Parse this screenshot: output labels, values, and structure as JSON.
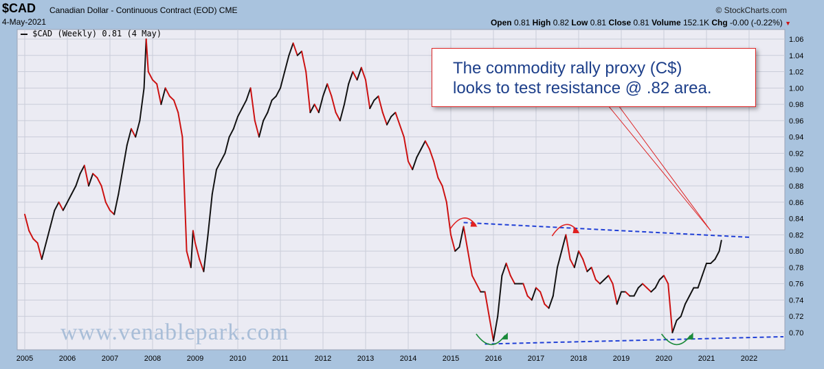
{
  "header": {
    "symbol": "$CAD",
    "subtitle": "Canadian Dollar - Continuous Contract (EOD)",
    "exchange": "CME",
    "date": "4-May-2021",
    "brand": "© StockCharts.com",
    "open_label": "Open",
    "open_value": "0.81",
    "high_label": "High",
    "high_value": "0.82",
    "low_label": "Low",
    "low_value": "0.81",
    "close_label": "Close",
    "close_value": "0.81",
    "volume_label": "Volume",
    "volume_value": "152.1K",
    "chg_label": "Chg",
    "chg_value": "-0.00 (-0.22%)"
  },
  "legend": {
    "label": "$CAD (Weekly) 0.81 (4 May)"
  },
  "callout": {
    "line1": "The commodity rally proxy (C$)",
    "line2": "looks to test resistance @ .82 area."
  },
  "watermark": "www.venablepark.com",
  "colors": {
    "up": "#111111",
    "down": "#cc1111",
    "resistance": "#1f3fd6",
    "support": "#1f3fd6",
    "top_arrow": "#e02020",
    "bottom_arrow": "#1a8a3a",
    "callout_border": "#dd2222",
    "callout_text": "#1d3f8a"
  },
  "chart_data": {
    "type": "line",
    "title": "$CAD",
    "ylim": [
      0.68,
      1.07
    ],
    "xlim": [
      2005.0,
      2022.6
    ],
    "yticks": [
      0.7,
      0.72,
      0.74,
      0.76,
      0.78,
      0.8,
      0.82,
      0.84,
      0.86,
      0.88,
      0.9,
      0.92,
      0.94,
      0.96,
      0.98,
      1.0,
      1.02,
      1.04,
      1.06
    ],
    "ytick_labels": [
      "0.70",
      "0.72",
      "0.74",
      "0.76",
      "0.78",
      "0.80",
      "0.82",
      "0.84",
      "0.86",
      "0.88",
      "0.90",
      "0.92",
      "0.94",
      "0.96",
      "0.98",
      "1.00",
      "1.02",
      "1.04",
      "1.06"
    ],
    "xticks": [
      2005,
      2006,
      2007,
      2008,
      2009,
      2010,
      2011,
      2012,
      2013,
      2014,
      2015,
      2016,
      2017,
      2018,
      2019,
      2020,
      2021,
      2022
    ],
    "xtick_labels": [
      "2005",
      "2006",
      "2007",
      "2008",
      "2009",
      "2010",
      "2011",
      "2012",
      "2013",
      "2014",
      "2015",
      "2016",
      "2017",
      "2018",
      "2019",
      "2020",
      "2021",
      "2022"
    ],
    "grid": true,
    "series": [
      {
        "name": "$CAD (Weekly)",
        "points": [
          [
            2005.0,
            0.845
          ],
          [
            2005.1,
            0.825
          ],
          [
            2005.2,
            0.815
          ],
          [
            2005.3,
            0.81
          ],
          [
            2005.4,
            0.79
          ],
          [
            2005.5,
            0.81
          ],
          [
            2005.6,
            0.83
          ],
          [
            2005.7,
            0.85
          ],
          [
            2005.8,
            0.86
          ],
          [
            2005.9,
            0.85
          ],
          [
            2006.0,
            0.86
          ],
          [
            2006.1,
            0.87
          ],
          [
            2006.2,
            0.88
          ],
          [
            2006.3,
            0.895
          ],
          [
            2006.4,
            0.905
          ],
          [
            2006.5,
            0.88
          ],
          [
            2006.6,
            0.895
          ],
          [
            2006.7,
            0.89
          ],
          [
            2006.8,
            0.88
          ],
          [
            2006.9,
            0.86
          ],
          [
            2007.0,
            0.85
          ],
          [
            2007.1,
            0.845
          ],
          [
            2007.2,
            0.87
          ],
          [
            2007.3,
            0.9
          ],
          [
            2007.4,
            0.93
          ],
          [
            2007.5,
            0.95
          ],
          [
            2007.6,
            0.94
          ],
          [
            2007.7,
            0.96
          ],
          [
            2007.8,
            1.0
          ],
          [
            2007.85,
            1.06
          ],
          [
            2007.9,
            1.02
          ],
          [
            2008.0,
            1.01
          ],
          [
            2008.1,
            1.005
          ],
          [
            2008.2,
            0.98
          ],
          [
            2008.3,
            1.0
          ],
          [
            2008.4,
            0.99
          ],
          [
            2008.5,
            0.985
          ],
          [
            2008.6,
            0.97
          ],
          [
            2008.7,
            0.94
          ],
          [
            2008.75,
            0.87
          ],
          [
            2008.8,
            0.8
          ],
          [
            2008.9,
            0.78
          ],
          [
            2008.95,
            0.825
          ],
          [
            2009.0,
            0.81
          ],
          [
            2009.1,
            0.79
          ],
          [
            2009.2,
            0.775
          ],
          [
            2009.3,
            0.82
          ],
          [
            2009.4,
            0.87
          ],
          [
            2009.5,
            0.9
          ],
          [
            2009.6,
            0.91
          ],
          [
            2009.7,
            0.92
          ],
          [
            2009.8,
            0.94
          ],
          [
            2009.9,
            0.95
          ],
          [
            2010.0,
            0.965
          ],
          [
            2010.1,
            0.975
          ],
          [
            2010.2,
            0.985
          ],
          [
            2010.3,
            1.0
          ],
          [
            2010.4,
            0.96
          ],
          [
            2010.5,
            0.94
          ],
          [
            2010.6,
            0.96
          ],
          [
            2010.7,
            0.97
          ],
          [
            2010.8,
            0.985
          ],
          [
            2010.9,
            0.99
          ],
          [
            2011.0,
            1.0
          ],
          [
            2011.1,
            1.02
          ],
          [
            2011.2,
            1.04
          ],
          [
            2011.3,
            1.055
          ],
          [
            2011.4,
            1.04
          ],
          [
            2011.5,
            1.045
          ],
          [
            2011.6,
            1.02
          ],
          [
            2011.7,
            0.97
          ],
          [
            2011.8,
            0.98
          ],
          [
            2011.9,
            0.97
          ],
          [
            2012.0,
            0.99
          ],
          [
            2012.1,
            1.005
          ],
          [
            2012.2,
            0.99
          ],
          [
            2012.3,
            0.97
          ],
          [
            2012.4,
            0.96
          ],
          [
            2012.5,
            0.98
          ],
          [
            2012.6,
            1.005
          ],
          [
            2012.7,
            1.02
          ],
          [
            2012.8,
            1.01
          ],
          [
            2012.9,
            1.025
          ],
          [
            2013.0,
            1.01
          ],
          [
            2013.1,
            0.975
          ],
          [
            2013.2,
            0.985
          ],
          [
            2013.3,
            0.99
          ],
          [
            2013.4,
            0.97
          ],
          [
            2013.5,
            0.955
          ],
          [
            2013.6,
            0.965
          ],
          [
            2013.7,
            0.97
          ],
          [
            2013.8,
            0.955
          ],
          [
            2013.9,
            0.94
          ],
          [
            2014.0,
            0.91
          ],
          [
            2014.1,
            0.9
          ],
          [
            2014.2,
            0.915
          ],
          [
            2014.3,
            0.925
          ],
          [
            2014.4,
            0.935
          ],
          [
            2014.5,
            0.925
          ],
          [
            2014.6,
            0.91
          ],
          [
            2014.7,
            0.89
          ],
          [
            2014.8,
            0.88
          ],
          [
            2014.9,
            0.86
          ],
          [
            2015.0,
            0.82
          ],
          [
            2015.1,
            0.8
          ],
          [
            2015.2,
            0.805
          ],
          [
            2015.3,
            0.83
          ],
          [
            2015.4,
            0.8
          ],
          [
            2015.5,
            0.77
          ],
          [
            2015.6,
            0.76
          ],
          [
            2015.7,
            0.75
          ],
          [
            2015.8,
            0.75
          ],
          [
            2015.9,
            0.72
          ],
          [
            2016.0,
            0.69
          ],
          [
            2016.1,
            0.72
          ],
          [
            2016.2,
            0.77
          ],
          [
            2016.3,
            0.785
          ],
          [
            2016.4,
            0.77
          ],
          [
            2016.5,
            0.76
          ],
          [
            2016.6,
            0.76
          ],
          [
            2016.7,
            0.76
          ],
          [
            2016.8,
            0.745
          ],
          [
            2016.9,
            0.74
          ],
          [
            2017.0,
            0.755
          ],
          [
            2017.1,
            0.75
          ],
          [
            2017.2,
            0.735
          ],
          [
            2017.3,
            0.73
          ],
          [
            2017.4,
            0.745
          ],
          [
            2017.5,
            0.78
          ],
          [
            2017.6,
            0.8
          ],
          [
            2017.7,
            0.82
          ],
          [
            2017.8,
            0.79
          ],
          [
            2017.9,
            0.78
          ],
          [
            2018.0,
            0.8
          ],
          [
            2018.1,
            0.79
          ],
          [
            2018.2,
            0.775
          ],
          [
            2018.3,
            0.78
          ],
          [
            2018.4,
            0.765
          ],
          [
            2018.5,
            0.76
          ],
          [
            2018.6,
            0.765
          ],
          [
            2018.7,
            0.77
          ],
          [
            2018.8,
            0.76
          ],
          [
            2018.9,
            0.735
          ],
          [
            2019.0,
            0.75
          ],
          [
            2019.1,
            0.75
          ],
          [
            2019.2,
            0.745
          ],
          [
            2019.3,
            0.745
          ],
          [
            2019.4,
            0.755
          ],
          [
            2019.5,
            0.76
          ],
          [
            2019.6,
            0.755
          ],
          [
            2019.7,
            0.75
          ],
          [
            2019.8,
            0.755
          ],
          [
            2019.9,
            0.765
          ],
          [
            2020.0,
            0.77
          ],
          [
            2020.1,
            0.76
          ],
          [
            2020.2,
            0.7
          ],
          [
            2020.3,
            0.715
          ],
          [
            2020.4,
            0.72
          ],
          [
            2020.5,
            0.735
          ],
          [
            2020.6,
            0.745
          ],
          [
            2020.7,
            0.755
          ],
          [
            2020.8,
            0.755
          ],
          [
            2020.9,
            0.77
          ],
          [
            2021.0,
            0.785
          ],
          [
            2021.1,
            0.785
          ],
          [
            2021.2,
            0.79
          ],
          [
            2021.3,
            0.8
          ],
          [
            2021.35,
            0.813
          ]
        ]
      }
    ],
    "resistance_line": [
      [
        2015.3,
        0.835
      ],
      [
        2022.0,
        0.817
      ]
    ],
    "support_line": [
      [
        2015.8,
        0.686
      ],
      [
        2023.0,
        0.695
      ]
    ],
    "tops": [
      [
        2015.3,
        0.835
      ],
      [
        2017.7,
        0.827
      ]
    ],
    "bottoms": [
      [
        2015.95,
        0.69
      ],
      [
        2020.3,
        0.69
      ]
    ]
  }
}
